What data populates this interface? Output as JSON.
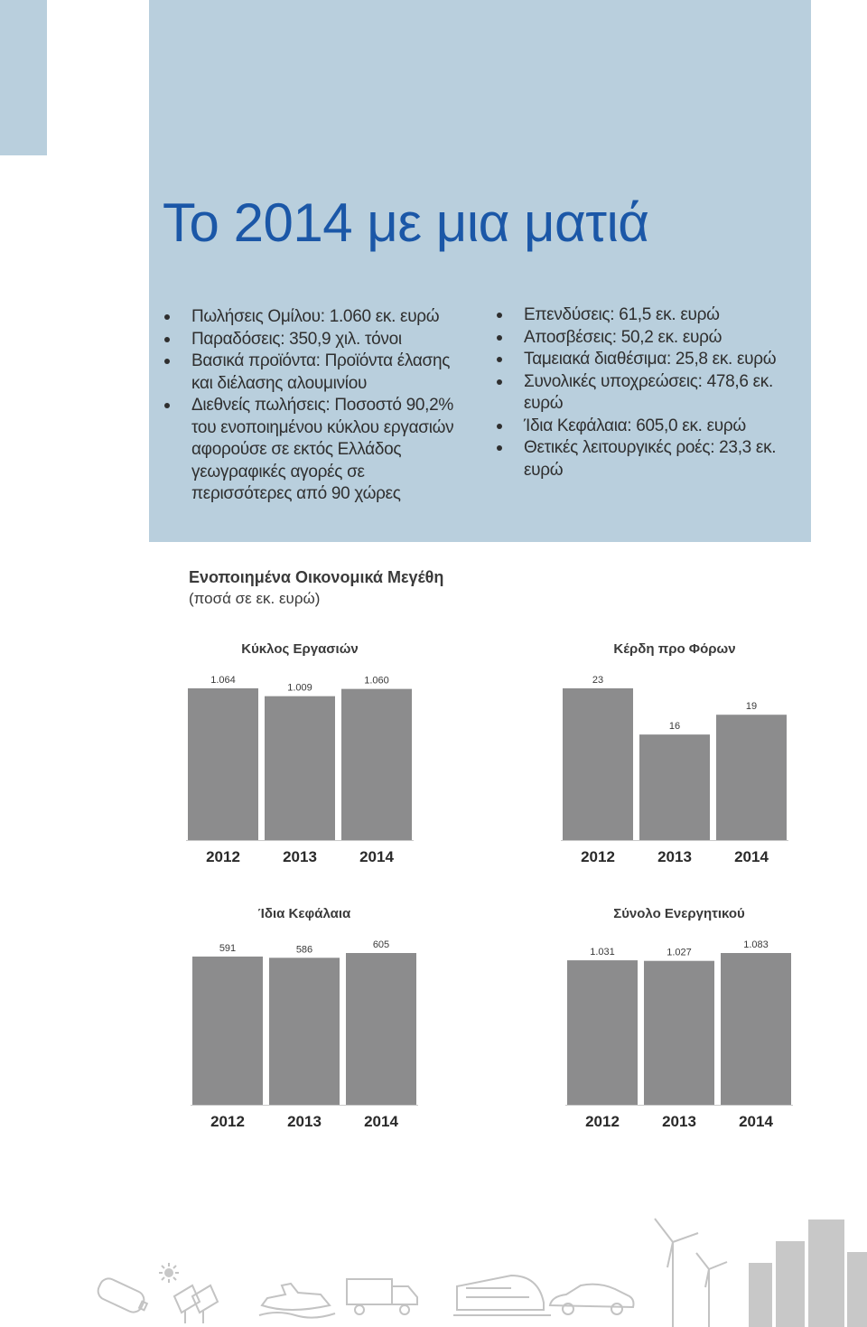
{
  "hero": {
    "title": "Το 2014 με μια ματιά",
    "bullets_left": [
      "Πωλήσεις Ομίλου: 1.060 εκ. ευρώ",
      "Παραδόσεις: 350,9 χιλ. τόνοι",
      "Βασικά προϊόντα: Προϊόντα έλασης και διέλασης αλουμινίου",
      "Διεθνείς πωλήσεις: Ποσοστό 90,2% του ενοποιημένου κύκλου εργασιών αφορούσε σε εκτός Ελλάδος γεωγραφικές αγορές σε περισσότερες από 90 χώρες"
    ],
    "bullets_right": [
      "Επενδύσεις: 61,5 εκ. ευρώ",
      "Αποσβέσεις: 50,2 εκ. ευρώ",
      "Ταμειακά διαθέσιμα: 25,8 εκ. ευρώ",
      "Συνολικές υποχρεώσεις: 478,6 εκ. ευρώ",
      "Ίδια Κεφάλαια: 605,0 εκ. ευρώ",
      "Θετικές λειτουργικές ροές: 23,3 εκ. ευρώ"
    ]
  },
  "section": {
    "title": "Ενοποιημένα Οικονομικά Μεγέθη",
    "subtitle": "(ποσά σε εκ. ευρώ)"
  },
  "chart_data": [
    {
      "id": "turnover",
      "type": "bar",
      "title": "Κύκλος Εργασιών",
      "categories": [
        "2012",
        "2013",
        "2014"
      ],
      "values": [
        1064,
        1009,
        1060
      ],
      "value_labels": [
        "1.064",
        "1.009",
        "1.060"
      ],
      "ylim": [
        0,
        1064
      ],
      "xlabel": "",
      "ylabel": ""
    },
    {
      "id": "ebt",
      "type": "bar",
      "title": "Κέρδη προ Φόρων",
      "categories": [
        "2012",
        "2013",
        "2014"
      ],
      "values": [
        23,
        16,
        19
      ],
      "value_labels": [
        "23",
        "16",
        "19"
      ],
      "ylim": [
        0,
        23
      ],
      "xlabel": "",
      "ylabel": ""
    },
    {
      "id": "equity",
      "type": "bar",
      "title": "Ίδια Κεφάλαια",
      "categories": [
        "2012",
        "2013",
        "2014"
      ],
      "values": [
        591,
        586,
        605
      ],
      "value_labels": [
        "591",
        "586",
        "605"
      ],
      "ylim": [
        0,
        605
      ],
      "xlabel": "",
      "ylabel": ""
    },
    {
      "id": "assets",
      "type": "bar",
      "title": "Σύνολο Ενεργητικού",
      "categories": [
        "2012",
        "2013",
        "2014"
      ],
      "values": [
        1031,
        1027,
        1083
      ],
      "value_labels": [
        "1.031",
        "1.027",
        "1.083"
      ],
      "ylim": [
        0,
        1083
      ],
      "xlabel": "",
      "ylabel": ""
    }
  ],
  "footer_icons": [
    "battery-icon",
    "solar-panel-icon",
    "jet-ski-icon",
    "truck-icon",
    "train-icon",
    "car-icon",
    "wind-turbine-icon",
    "buildings-icon"
  ]
}
